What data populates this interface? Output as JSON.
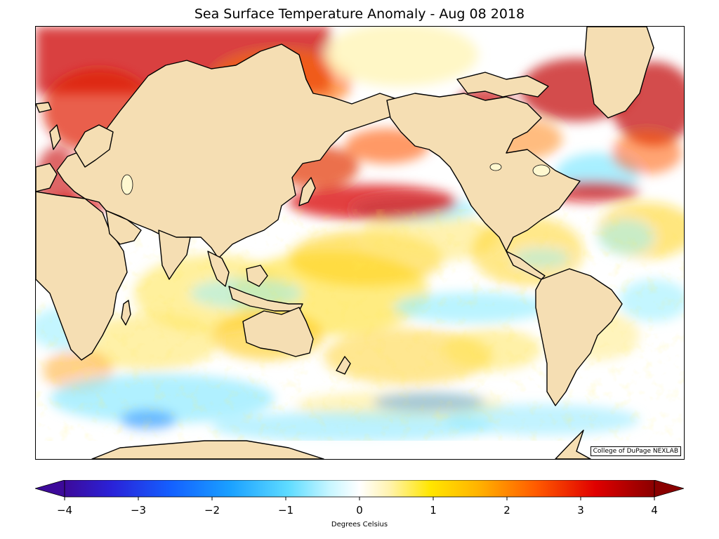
{
  "title": "Sea Surface Temperature Anomaly - Aug 08 2018",
  "credit": "College of DuPage NEXLAB",
  "colorbar": {
    "label": "Degrees Celsius",
    "min": -4,
    "max": 4,
    "ticks": [
      "−4",
      "−3",
      "−2",
      "−1",
      "0",
      "1",
      "2",
      "3",
      "4"
    ],
    "extend": "both"
  },
  "colors": {
    "land": "#f5deb3",
    "ocean_neutral": "#ffffff",
    "coast": "#000000"
  }
}
